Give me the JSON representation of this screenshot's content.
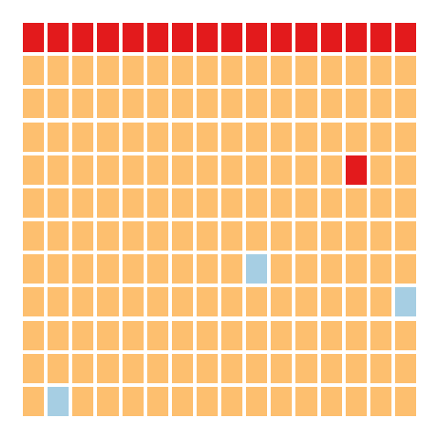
{
  "board": {
    "rows": 12,
    "cols": 16,
    "colors": {
      "default": "#fdbf6f",
      "red": "#e31a1c",
      "blue": "#a6cee3"
    },
    "highlighted_cells": [
      {
        "row": 0,
        "col": 0,
        "color": "red"
      },
      {
        "row": 0,
        "col": 1,
        "color": "red"
      },
      {
        "row": 0,
        "col": 2,
        "color": "red"
      },
      {
        "row": 0,
        "col": 3,
        "color": "red"
      },
      {
        "row": 0,
        "col": 4,
        "color": "red"
      },
      {
        "row": 0,
        "col": 5,
        "color": "red"
      },
      {
        "row": 0,
        "col": 6,
        "color": "red"
      },
      {
        "row": 0,
        "col": 7,
        "color": "red"
      },
      {
        "row": 0,
        "col": 8,
        "color": "red"
      },
      {
        "row": 0,
        "col": 9,
        "color": "red"
      },
      {
        "row": 0,
        "col": 10,
        "color": "red"
      },
      {
        "row": 0,
        "col": 11,
        "color": "red"
      },
      {
        "row": 0,
        "col": 12,
        "color": "red"
      },
      {
        "row": 0,
        "col": 13,
        "color": "red"
      },
      {
        "row": 0,
        "col": 14,
        "color": "red"
      },
      {
        "row": 0,
        "col": 15,
        "color": "red"
      },
      {
        "row": 4,
        "col": 13,
        "color": "red"
      },
      {
        "row": 7,
        "col": 9,
        "color": "blue"
      },
      {
        "row": 8,
        "col": 15,
        "color": "blue"
      },
      {
        "row": 11,
        "col": 1,
        "color": "blue"
      }
    ]
  }
}
